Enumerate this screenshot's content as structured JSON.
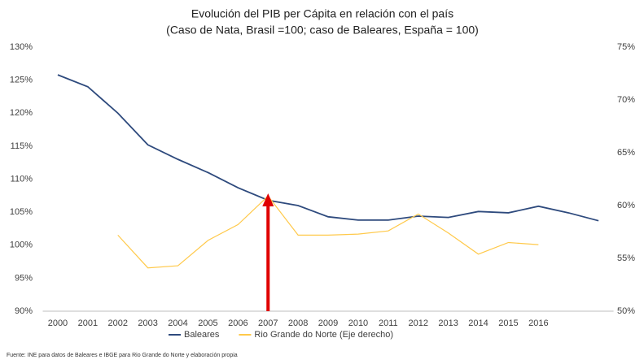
{
  "chart_data": {
    "type": "line",
    "title": "Evolución del PIB per Cápita en relación con el país",
    "subtitle": "(Caso de Nata, Brasil =100; caso de Baleares, España = 100)",
    "source": "Fuente: INE para datos de Baleares e IBGE  para Rio Grande do Norte y elaboración propia",
    "categories": [
      "2000",
      "2001",
      "2002",
      "2003",
      "2004",
      "2005",
      "2006",
      "2007",
      "2008",
      "2009",
      "2010",
      "2011",
      "2012",
      "2013",
      "2014",
      "2015",
      "2016",
      null,
      null
    ],
    "series": [
      {
        "name": "Baleares",
        "color": "#2e4a7d",
        "values": [
          125.8,
          124.0,
          120.0,
          115.2,
          113.0,
          111.0,
          108.7,
          106.8,
          106.0,
          104.3,
          103.8,
          103.8,
          104.4,
          104.2,
          105.1,
          104.9,
          105.9,
          104.9,
          103.7
        ]
      },
      {
        "name": "Rio Grande do Norte (Eje derecho)",
        "color": "#ffc94a",
        "axis": "y2",
        "values": [
          null,
          null,
          57.2,
          54.1,
          54.3,
          56.7,
          58.2,
          60.9,
          57.2,
          57.2,
          57.3,
          57.6,
          59.2,
          57.4,
          55.4,
          56.5,
          56.3,
          null,
          null
        ]
      }
    ],
    "ylim": [
      90,
      130
    ],
    "yticks": [
      {
        "value": 90,
        "label": "90%"
      },
      {
        "value": 95,
        "label": "95%"
      },
      {
        "value": 100,
        "label": "100%"
      },
      {
        "value": 105,
        "label": "105%"
      },
      {
        "value": 110,
        "label": "110%"
      },
      {
        "value": 115,
        "label": "115%"
      },
      {
        "value": 120,
        "label": "120%"
      },
      {
        "value": 125,
        "label": "125%"
      },
      {
        "value": 130,
        "label": "130%"
      }
    ],
    "y2lim": [
      50,
      75
    ],
    "y2ticks": [
      {
        "value": 50,
        "label": "50%"
      },
      {
        "value": 55,
        "label": "55%"
      },
      {
        "value": 60,
        "label": "60%"
      },
      {
        "value": 65,
        "label": "65%"
      },
      {
        "value": 70,
        "label": "70%"
      },
      {
        "value": 75,
        "label": "75%"
      }
    ],
    "grid": false
  }
}
